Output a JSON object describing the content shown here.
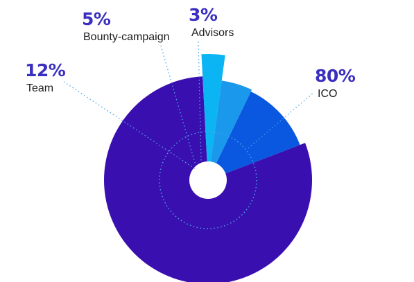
{
  "chart_data": {
    "type": "pie",
    "variant": "polar-area-donut",
    "title": "",
    "slices": [
      {
        "label": "ICO",
        "value": 80,
        "display": "80%",
        "color": "#3a0fb0"
      },
      {
        "label": "Team",
        "value": 12,
        "display": "12%",
        "color": "#0a57e0"
      },
      {
        "label": "Bounty-campaign",
        "value": 5,
        "display": "5%",
        "color": "#1a98ec"
      },
      {
        "label": "Advisors",
        "value": 3,
        "display": "3%",
        "color": "#0bb4f2"
      }
    ],
    "percent_color": "#3a2fbf",
    "leader_color": "#4aa6e8",
    "legend": "none"
  }
}
